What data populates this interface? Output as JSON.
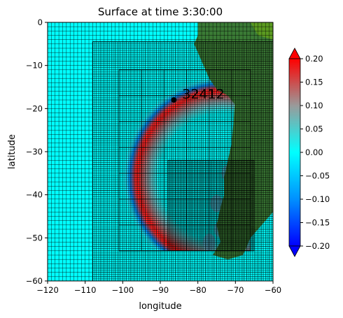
{
  "chart_data": {
    "type": "heatmap",
    "title": "Surface at time 3:30:00",
    "xlabel": "longitude",
    "ylabel": "latitude",
    "xlim": [
      -120,
      -60
    ],
    "ylim": [
      -60,
      0
    ],
    "xticks": [
      -120,
      -110,
      -100,
      -90,
      -80,
      -70,
      -60
    ],
    "yticks": [
      0,
      -10,
      -20,
      -30,
      -40,
      -50,
      -60
    ],
    "colorbar": {
      "min": -0.2,
      "max": 0.2,
      "ticks": [
        "0.20",
        "0.15",
        "0.10",
        "0.05",
        "0.00",
        "−0.05",
        "−0.10",
        "−0.15",
        "−0.20"
      ],
      "colors": [
        "#0000ff",
        "#0090ff",
        "#00ffff",
        "#9a9a9a",
        "#ff0000"
      ],
      "extend": "both"
    },
    "gauge": {
      "label": "32412",
      "lon": -86.4,
      "lat": -18.0
    },
    "grid_levels": [
      {
        "level": 1,
        "xmin": -120,
        "xmax": -60,
        "ymin": -60,
        "ymax": 0,
        "step": 1.0
      },
      {
        "level": 2,
        "xmin": -108,
        "xmax": -60,
        "ymin": -60,
        "ymax": -4.5,
        "step": 0.5
      },
      {
        "level": 3,
        "xmin": -101,
        "xmax": -66,
        "ymin": -53,
        "ymax": -11,
        "step": 6.0
      },
      {
        "level": 4,
        "xmin": -88,
        "xmax": -65,
        "ymin": -53,
        "ymax": -32,
        "step": 0.25
      }
    ],
    "wavefront": {
      "center_lon": -73,
      "center_lat": -36,
      "radius_deg": 23.5
    },
    "land_color": "#3a7a35",
    "ocean_color": "#00ffff"
  }
}
